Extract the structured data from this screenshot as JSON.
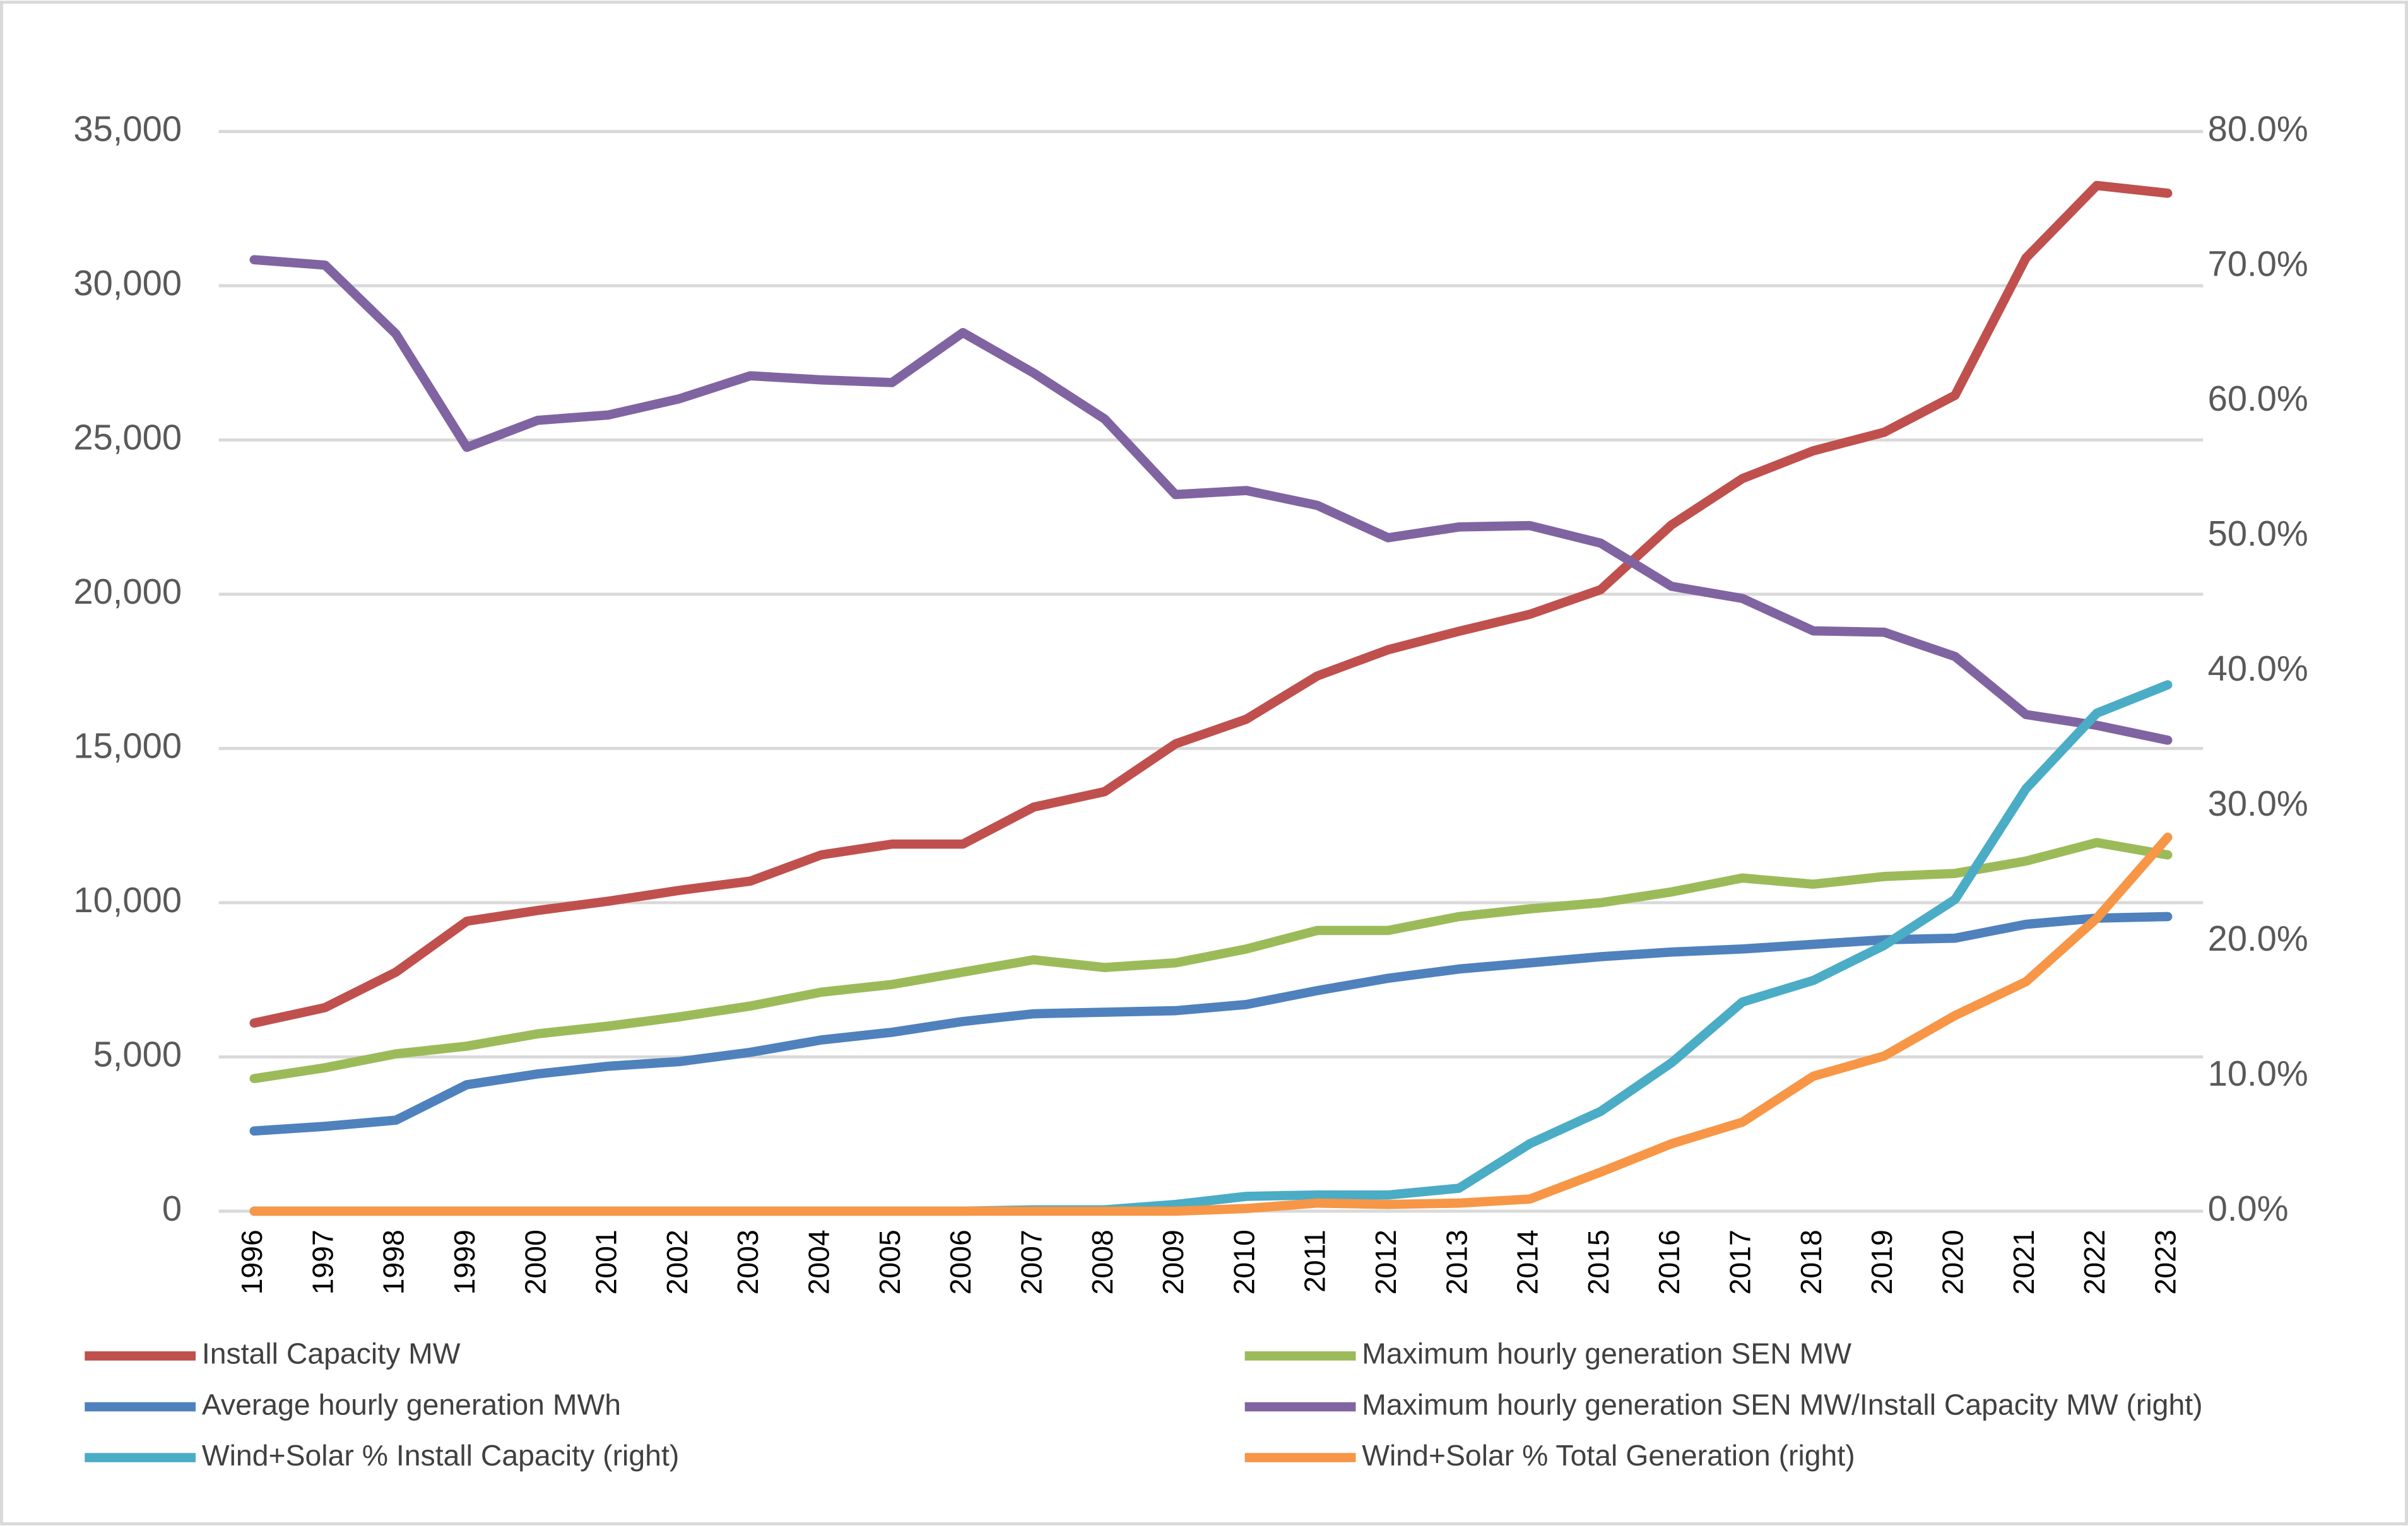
{
  "chart_data": {
    "type": "line",
    "categories": [
      "1996",
      "1997",
      "1998",
      "1999",
      "2000",
      "2001",
      "2002",
      "2003",
      "2004",
      "2005",
      "2006",
      "2007",
      "2008",
      "2009",
      "2010",
      "2011",
      "2012",
      "2013",
      "2014",
      "2015",
      "2016",
      "2017",
      "2018",
      "2019",
      "2020",
      "2021",
      "2022",
      "2023"
    ],
    "series": [
      {
        "name": "Install Capacity MW",
        "color": "#c0504d",
        "values": [
          6100,
          6600,
          7750,
          9400,
          9750,
          10050,
          10400,
          10700,
          11550,
          11900,
          11900,
          13100,
          13600,
          15150,
          15950,
          17350,
          18200,
          18800,
          19350,
          20150,
          22250,
          23750,
          24650,
          25250,
          26450,
          30900,
          33250,
          33000
        ]
      },
      {
        "name": "Maximum hourly generation SEN MW",
        "color": "#9bbb59",
        "values": [
          4300,
          4650,
          5100,
          5350,
          5750,
          6000,
          6300,
          6650,
          7100,
          7350,
          7750,
          8150,
          7900,
          8050,
          8500,
          9100,
          9100,
          9550,
          9800,
          10000,
          10350,
          10800,
          10600,
          10850,
          10950,
          11350,
          11950,
          11550
        ]
      },
      {
        "name": "Average hourly generation MWh",
        "color": "#4f81bd",
        "values": [
          2600,
          2750,
          2950,
          4100,
          4450,
          4700,
          4850,
          5150,
          5550,
          5800,
          6150,
          6400,
          6450,
          6500,
          6700,
          7150,
          7550,
          7850,
          8050,
          8250,
          8400,
          8500,
          8650,
          8800,
          8850,
          9300,
          9500,
          9550
        ]
      },
      {
        "name": "Maximum hourly generation SEN MW/Install Capacity MW (right)",
        "color": "#8064a2",
        "axis": "y2",
        "values": [
          70.5,
          70.1,
          65.0,
          56.6,
          58.6,
          59.0,
          60.2,
          61.9,
          61.6,
          61.4,
          65.1,
          62.1,
          58.7,
          53.1,
          53.4,
          52.3,
          49.9,
          50.7,
          50.8,
          49.5,
          46.3,
          45.4,
          43.0,
          42.9,
          41.1,
          36.8,
          36.0,
          34.9
        ]
      },
      {
        "name": "Wind+Solar % Install Capacity (right)",
        "color": "#4bacc6",
        "axis": "y2",
        "values": [
          0,
          0,
          0,
          0,
          0,
          0,
          0,
          0,
          0,
          0,
          0,
          0.1,
          0.1,
          0.5,
          1.1,
          1.2,
          1.2,
          1.7,
          5.0,
          7.4,
          11.0,
          15.5,
          17.1,
          19.7,
          23.1,
          31.3,
          36.9,
          39.0
        ]
      },
      {
        "name": "Wind+Solar % Total Generation (right)",
        "color": "#f79646",
        "axis": "y2",
        "values": [
          0,
          0,
          0,
          0,
          0,
          0,
          0,
          0,
          0,
          0,
          0,
          0,
          0,
          0,
          0.2,
          0.6,
          0.5,
          0.6,
          0.9,
          2.9,
          5.0,
          6.6,
          10.0,
          11.5,
          14.5,
          17.0,
          21.7,
          27.7
        ]
      }
    ],
    "ylim": [
      0,
      35000
    ],
    "yticks": [
      0,
      {
        "value": 5000,
        "label": "5,000"
      },
      {
        "value": 10000,
        "label": "10,000"
      },
      {
        "value": 15000,
        "label": "15,000"
      },
      {
        "value": 20000,
        "label": "20,000"
      },
      {
        "value": 25000,
        "label": "25,000"
      },
      {
        "value": 30000,
        "label": "30,000"
      },
      {
        "value": 35000,
        "label": "35,000"
      }
    ],
    "y2lim": [
      0,
      80
    ],
    "y2ticks": [
      {
        "value": 0,
        "label": "0.0%"
      },
      {
        "value": 10,
        "label": "10.0%"
      },
      {
        "value": 20,
        "label": "20.0%"
      },
      {
        "value": 30,
        "label": "30.0%"
      },
      {
        "value": 40,
        "label": "40.0%"
      },
      {
        "value": 50,
        "label": "50.0%"
      },
      {
        "value": 60,
        "label": "60.0%"
      },
      {
        "value": 70,
        "label": "70.0%"
      },
      {
        "value": 80,
        "label": "80.0%"
      }
    ],
    "grid": true,
    "legend": "bottom"
  }
}
